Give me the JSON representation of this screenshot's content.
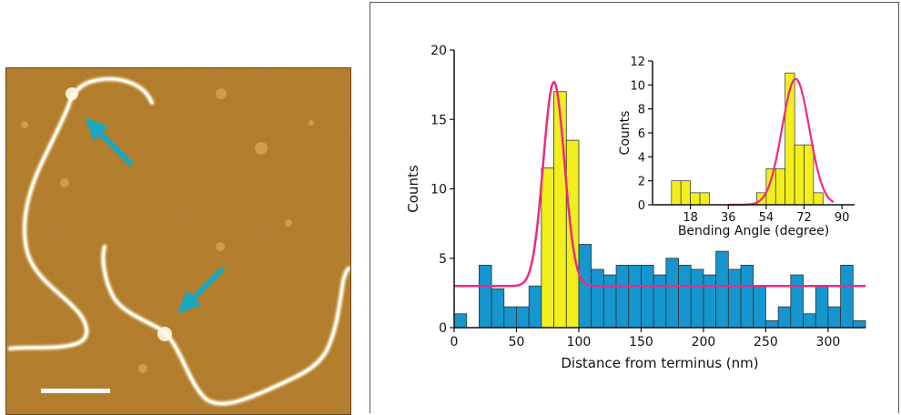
{
  "colors": {
    "bar_blue": "#1596cf",
    "bar_yellow": "#f3ef1d",
    "fit_curve": "#ee2a82",
    "arrow": "#1aa7c0",
    "afm_background": "#c48a32",
    "dna_strand": "#fff3d0"
  },
  "afm_image": {
    "arrows": [
      "arrow-icon",
      "arrow-icon"
    ],
    "scale_bar": "scale-bar"
  },
  "chart_data": [
    {
      "type": "bar",
      "title": "",
      "xlabel": "Distance from terminus (nm)",
      "ylabel": "Counts",
      "xlim": [
        0,
        330
      ],
      "ylim": [
        0,
        20
      ],
      "xticks": [
        0,
        50,
        100,
        150,
        200,
        250,
        300
      ],
      "yticks": [
        0,
        5,
        10,
        15,
        20
      ],
      "bin_width": 10,
      "bars": [
        {
          "x": 0,
          "value": 1,
          "highlight": false
        },
        {
          "x": 20,
          "value": 4.5,
          "highlight": false
        },
        {
          "x": 30,
          "value": 2.8,
          "highlight": false
        },
        {
          "x": 40,
          "value": 1.5,
          "highlight": false
        },
        {
          "x": 50,
          "value": 1.5,
          "highlight": false
        },
        {
          "x": 60,
          "value": 3,
          "highlight": false
        },
        {
          "x": 70,
          "value": 11.5,
          "highlight": true
        },
        {
          "x": 80,
          "value": 17,
          "highlight": true
        },
        {
          "x": 90,
          "value": 13.5,
          "highlight": true
        },
        {
          "x": 100,
          "value": 6,
          "highlight": false
        },
        {
          "x": 110,
          "value": 4.2,
          "highlight": false
        },
        {
          "x": 120,
          "value": 3.8,
          "highlight": false
        },
        {
          "x": 130,
          "value": 4.5,
          "highlight": false
        },
        {
          "x": 140,
          "value": 4.5,
          "highlight": false
        },
        {
          "x": 150,
          "value": 4.5,
          "highlight": false
        },
        {
          "x": 160,
          "value": 3.8,
          "highlight": false
        },
        {
          "x": 170,
          "value": 5,
          "highlight": false
        },
        {
          "x": 180,
          "value": 4.5,
          "highlight": false
        },
        {
          "x": 190,
          "value": 4.2,
          "highlight": false
        },
        {
          "x": 200,
          "value": 3.8,
          "highlight": false
        },
        {
          "x": 210,
          "value": 5.5,
          "highlight": false
        },
        {
          "x": 220,
          "value": 4.2,
          "highlight": false
        },
        {
          "x": 230,
          "value": 4.5,
          "highlight": false
        },
        {
          "x": 240,
          "value": 3,
          "highlight": false
        },
        {
          "x": 250,
          "value": 0.5,
          "highlight": false
        },
        {
          "x": 260,
          "value": 1.5,
          "highlight": false
        },
        {
          "x": 270,
          "value": 3.8,
          "highlight": false
        },
        {
          "x": 280,
          "value": 1,
          "highlight": false
        },
        {
          "x": 290,
          "value": 3,
          "highlight": false
        },
        {
          "x": 300,
          "value": 1.5,
          "highlight": false
        },
        {
          "x": 310,
          "value": 4.5,
          "highlight": false
        },
        {
          "x": 320,
          "value": 0.5,
          "highlight": false
        }
      ],
      "fit": {
        "baseline": 3,
        "peak": 17.7,
        "center": 80,
        "sigma": 8.5,
        "x_start": 0,
        "x_end": 330
      }
    },
    {
      "type": "bar",
      "title": "",
      "xlabel": "Bending Angle (degree)",
      "ylabel": "Counts",
      "xlim": [
        0,
        96
      ],
      "ylim": [
        0,
        12
      ],
      "xticks": [
        18,
        36,
        54,
        72,
        90
      ],
      "yticks": [
        0,
        2,
        4,
        6,
        8,
        10,
        12
      ],
      "bin_width": 4.5,
      "bars": [
        {
          "x": 9,
          "value": 2
        },
        {
          "x": 13.5,
          "value": 2
        },
        {
          "x": 18,
          "value": 1
        },
        {
          "x": 22.5,
          "value": 1
        },
        {
          "x": 49.5,
          "value": 1
        },
        {
          "x": 54,
          "value": 3
        },
        {
          "x": 58.5,
          "value": 3
        },
        {
          "x": 63,
          "value": 11
        },
        {
          "x": 67.5,
          "value": 5
        },
        {
          "x": 72,
          "value": 5
        },
        {
          "x": 76.5,
          "value": 1
        }
      ],
      "fit": {
        "baseline": 0,
        "peak": 10.5,
        "center": 68,
        "sigma": 6.5,
        "x_start": 36,
        "x_end": 86
      }
    }
  ]
}
